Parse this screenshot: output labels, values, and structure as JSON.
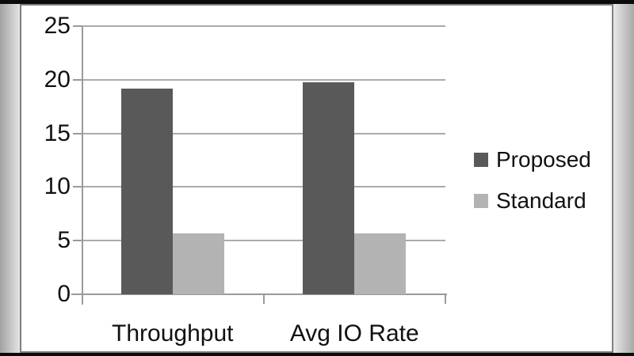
{
  "frame": {
    "chart_background": "#ffffff",
    "chart_border_color": "#7f7f7f",
    "letterbox_color": "#0b0b0b",
    "side_strip_colors": [
      "#a2a2a2",
      "#e4e4e4"
    ]
  },
  "chart_data": {
    "type": "bar",
    "title": "",
    "xlabel": "",
    "ylabel": "",
    "categories": [
      "Throughput",
      "Avg IO Rate"
    ],
    "series": [
      {
        "name": "Proposed",
        "color": "#595959",
        "values": [
          19.2,
          19.8
        ]
      },
      {
        "name": "Standard",
        "color": "#b3b3b3",
        "values": [
          5.7,
          5.7
        ]
      }
    ],
    "ylim": [
      0,
      25
    ],
    "yticks": [
      0,
      5,
      10,
      15,
      20,
      25
    ],
    "grid": true,
    "legend_position": "right",
    "gridline_color": "#ababab",
    "axis_color": "#9a9a9a",
    "text_color": "#111111"
  }
}
